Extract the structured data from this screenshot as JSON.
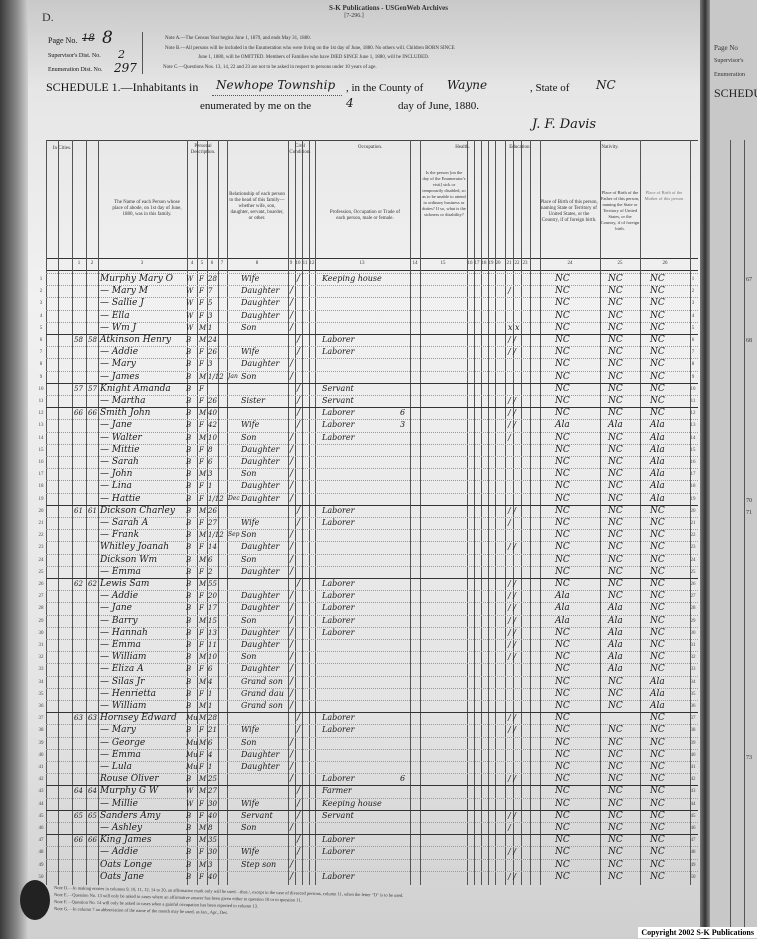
{
  "publisher": {
    "line1": "S-K Publications - USGenWeb Archives",
    "line2": "[7-296.]",
    "copyright": "Copyright 2002 S-K Publications"
  },
  "form_letter": "D.",
  "page_no": {
    "label": "Page No.",
    "struck": "18",
    "value": "8"
  },
  "supervisor": {
    "label": "Supervisor's Dist. No.",
    "value": "2"
  },
  "enumeration": {
    "label": "Enumeration Dist. No.",
    "value": "297"
  },
  "notes_top": [
    "Note A.—The Census Year begins June 1, 1879, and ends May 31, 1880.",
    "Note B.—All persons will be included in the Enumeration who were living on the 1st day of June, 1880. No others will. Children BORN SINCE",
    "June 1, 1880, will be OMITTED. Members of Families who have DIED SINCE June 1, 1880, will be INCLUDED.",
    "Note C.—Questions Nos. 13, 14, 22 and 23 are not to be asked in respect to persons under 10 years of age."
  ],
  "schedule": {
    "title": "SCHEDULE 1.—Inhabitants in",
    "place": "Newhope Township",
    "county_label": ", in the County of",
    "county": "Wayne",
    "state_label": ", State of",
    "state": "NC",
    "enum_label": "enumerated by me on the",
    "day": "4",
    "month_label": "day of June, 1880.",
    "signature": "J. F. Davis"
  },
  "headers": {
    "in_cities": "In Cities.",
    "personal": "Personal Description.",
    "civil": "Civil Condition.",
    "occupation": "Occupation.",
    "health": "Health.",
    "education": "Education.",
    "nativity": "Nativity.",
    "name_col": "The Name of each Person whose place of abode, on 1st day of June, 1880, was in this family.",
    "relationship_col": "Relationship of each person to the head of this family—whether wife, son, daughter, servant, boarder, or other.",
    "occupation_col": "Profession, Occupation or Trade of each person, male or female.",
    "health_col": "Is the person [on the day of the Enumerator's visit] sick or temporarily disabled, so as to be unable to attend to ordinary business or duties? If so, what is the sickness or disability?",
    "birth_col": "Place of Birth of this person, naming State or Territory of United States, or the Country, if of foreign birth.",
    "father_col": "Place of Birth of the Father of this person, naming the State or Territory of United States, or the Country, if of foreign birth.",
    "mother_col": "Place of Birth of the Mother of this person",
    "col_numbers": [
      "1",
      "2",
      "3",
      "4",
      "5",
      "6",
      "7",
      "8",
      "9",
      "10",
      "11",
      "12",
      "13",
      "14",
      "15",
      "16",
      "17",
      "18",
      "19",
      "20",
      "21",
      "22",
      "23",
      "24",
      "25",
      "26"
    ]
  },
  "rows": [
    {
      "d": "",
      "f": "",
      "name": "Murphy Mary O",
      "c": "W",
      "s": "F",
      "a": "28",
      "m": "",
      "rel": "Wife",
      "sg": "",
      "mr": "/",
      "occ": "Keeping house",
      "un": "",
      "ed": "",
      "b": "NC",
      "fb": "NC",
      "mb": "NC"
    },
    {
      "d": "",
      "f": "",
      "name": "— Mary M",
      "c": "W",
      "s": "F",
      "a": "7",
      "m": "",
      "rel": "Daughter",
      "sg": "/",
      "mr": "",
      "occ": "",
      "un": "",
      "ed": "/",
      "b": "NC",
      "fb": "NC",
      "mb": "NC"
    },
    {
      "d": "",
      "f": "",
      "name": "— Sallie J",
      "c": "W",
      "s": "F",
      "a": "5",
      "m": "",
      "rel": "Daughter",
      "sg": "/",
      "mr": "",
      "occ": "",
      "un": "",
      "ed": "",
      "b": "NC",
      "fb": "NC",
      "mb": "NC"
    },
    {
      "d": "",
      "f": "",
      "name": "— Ella",
      "c": "W",
      "s": "F",
      "a": "3",
      "m": "",
      "rel": "Daughter",
      "sg": "/",
      "mr": "",
      "occ": "",
      "un": "",
      "ed": "",
      "b": "NC",
      "fb": "NC",
      "mb": "NC"
    },
    {
      "d": "",
      "f": "",
      "name": "— Wm J",
      "c": "W",
      "s": "M",
      "a": "1",
      "m": "",
      "rel": "Son",
      "sg": "/",
      "mr": "",
      "occ": "",
      "un": "",
      "ed": "x x",
      "b": "NC",
      "fb": "NC",
      "mb": "NC"
    },
    {
      "d": "58",
      "f": "58",
      "name": "Atkinson Henry",
      "c": "B",
      "s": "M",
      "a": "24",
      "m": "",
      "rel": "",
      "sg": "",
      "mr": "/",
      "occ": "Laborer",
      "un": "",
      "ed": "/ /",
      "b": "NC",
      "fb": "NC",
      "mb": "NC"
    },
    {
      "d": "",
      "f": "",
      "name": "— Addie",
      "c": "B",
      "s": "F",
      "a": "26",
      "m": "",
      "rel": "Wife",
      "sg": "",
      "mr": "/",
      "occ": "Laborer",
      "un": "",
      "ed": "/ /",
      "b": "NC",
      "fb": "NC",
      "mb": "NC"
    },
    {
      "d": "",
      "f": "",
      "name": "— Mary",
      "c": "B",
      "s": "F",
      "a": "3",
      "m": "",
      "rel": "Daughter",
      "sg": "/",
      "mr": "",
      "occ": "",
      "un": "",
      "ed": "",
      "b": "NC",
      "fb": "NC",
      "mb": "NC"
    },
    {
      "d": "",
      "f": "",
      "name": "— James",
      "c": "B",
      "s": "M",
      "a": "1/12",
      "m": "Jan",
      "rel": "Son",
      "sg": "/",
      "mr": "",
      "occ": "",
      "un": "",
      "ed": "",
      "b": "NC",
      "fb": "NC",
      "mb": "NC"
    },
    {
      "d": "57",
      "f": "57",
      "name": "Knight Amanda",
      "c": "B",
      "s": "F",
      "a": "",
      "m": "",
      "rel": "",
      "sg": "",
      "mr": "/",
      "occ": "Servant",
      "un": "",
      "ed": "",
      "b": "NC",
      "fb": "NC",
      "mb": "NC"
    },
    {
      "d": "",
      "f": "",
      "name": "— Martha",
      "c": "B",
      "s": "F",
      "a": "26",
      "m": "",
      "rel": "Sister",
      "sg": "",
      "mr": "/",
      "occ": "Servant",
      "un": "",
      "ed": "/ /",
      "b": "NC",
      "fb": "NC",
      "mb": "NC"
    },
    {
      "d": "66",
      "f": "66",
      "name": "Smith John",
      "c": "B",
      "s": "M",
      "a": "40",
      "m": "",
      "rel": "",
      "sg": "",
      "mr": "/",
      "occ": "Laborer",
      "un": "6",
      "ed": "/ /",
      "b": "NC",
      "fb": "NC",
      "mb": "NC"
    },
    {
      "d": "",
      "f": "",
      "name": "— Jane",
      "c": "B",
      "s": "F",
      "a": "42",
      "m": "",
      "rel": "Wife",
      "sg": "",
      "mr": "/",
      "occ": "Laborer",
      "un": "3",
      "ed": "/ /",
      "b": "Ala",
      "fb": "Ala",
      "mb": "Ala"
    },
    {
      "d": "",
      "f": "",
      "name": "— Walter",
      "c": "B",
      "s": "M",
      "a": "10",
      "m": "",
      "rel": "Son",
      "sg": "/",
      "mr": "",
      "occ": "Laborer",
      "un": "",
      "ed": "/",
      "b": "NC",
      "fb": "NC",
      "mb": "Ala"
    },
    {
      "d": "",
      "f": "",
      "name": "— Mittie",
      "c": "B",
      "s": "F",
      "a": "8",
      "m": "",
      "rel": "Daughter",
      "sg": "/",
      "mr": "",
      "occ": "",
      "un": "",
      "ed": "",
      "b": "NC",
      "fb": "NC",
      "mb": "Ala"
    },
    {
      "d": "",
      "f": "",
      "name": "— Sarah",
      "c": "B",
      "s": "F",
      "a": "6",
      "m": "",
      "rel": "Daughter",
      "sg": "/",
      "mr": "",
      "occ": "",
      "un": "",
      "ed": "",
      "b": "NC",
      "fb": "NC",
      "mb": "Ala"
    },
    {
      "d": "",
      "f": "",
      "name": "— John",
      "c": "B",
      "s": "M",
      "a": "3",
      "m": "",
      "rel": "Son",
      "sg": "/",
      "mr": "",
      "occ": "",
      "un": "",
      "ed": "",
      "b": "NC",
      "fb": "NC",
      "mb": "Ala"
    },
    {
      "d": "",
      "f": "",
      "name": "— Lina",
      "c": "B",
      "s": "F",
      "a": "1",
      "m": "",
      "rel": "Daughter",
      "sg": "/",
      "mr": "",
      "occ": "",
      "un": "",
      "ed": "",
      "b": "NC",
      "fb": "NC",
      "mb": "Ala"
    },
    {
      "d": "",
      "f": "",
      "name": "— Hattie",
      "c": "B",
      "s": "F",
      "a": "1/12",
      "m": "Dec",
      "rel": "Daughter",
      "sg": "/",
      "mr": "",
      "occ": "",
      "un": "",
      "ed": "",
      "b": "NC",
      "fb": "NC",
      "mb": "Ala"
    },
    {
      "d": "61",
      "f": "61",
      "name": "Dickson Charley",
      "c": "B",
      "s": "M",
      "a": "26",
      "m": "",
      "rel": "",
      "sg": "",
      "mr": "/",
      "occ": "Laborer",
      "un": "",
      "ed": "/ /",
      "b": "NC",
      "fb": "NC",
      "mb": "NC"
    },
    {
      "d": "",
      "f": "",
      "name": "— Sarah A",
      "c": "B",
      "s": "F",
      "a": "27",
      "m": "",
      "rel": "Wife",
      "sg": "",
      "mr": "/",
      "occ": "Laborer",
      "un": "",
      "ed": "/",
      "b": "NC",
      "fb": "NC",
      "mb": "NC"
    },
    {
      "d": "",
      "f": "",
      "name": "— Frank",
      "c": "B",
      "s": "M",
      "a": "1/12",
      "m": "Sep",
      "rel": "Son",
      "sg": "/",
      "mr": "",
      "occ": "",
      "un": "",
      "ed": "",
      "b": "NC",
      "fb": "NC",
      "mb": "NC"
    },
    {
      "d": "",
      "f": "",
      "name": "Whitley Joanah",
      "c": "B",
      "s": "F",
      "a": "14",
      "m": "",
      "rel": "Daughter",
      "sg": "/",
      "mr": "",
      "occ": "",
      "un": "",
      "ed": "/ /",
      "b": "NC",
      "fb": "NC",
      "mb": "NC"
    },
    {
      "d": "",
      "f": "",
      "name": "Dickson Wm",
      "c": "B",
      "s": "M",
      "a": "6",
      "m": "",
      "rel": "Son",
      "sg": "/",
      "mr": "",
      "occ": "",
      "un": "",
      "ed": "",
      "b": "NC",
      "fb": "NC",
      "mb": "NC"
    },
    {
      "d": "",
      "f": "",
      "name": "— Emma",
      "c": "B",
      "s": "F",
      "a": "2",
      "m": "",
      "rel": "Daughter",
      "sg": "/",
      "mr": "",
      "occ": "",
      "un": "",
      "ed": "",
      "b": "NC",
      "fb": "NC",
      "mb": "NC"
    },
    {
      "d": "62",
      "f": "62",
      "name": "Lewis Sam",
      "c": "B",
      "s": "M",
      "a": "55",
      "m": "",
      "rel": "",
      "sg": "",
      "mr": "/",
      "occ": "Laborer",
      "un": "",
      "ed": "/ /",
      "b": "NC",
      "fb": "NC",
      "mb": "NC"
    },
    {
      "d": "",
      "f": "",
      "name": "— Addie",
      "c": "B",
      "s": "F",
      "a": "20",
      "m": "",
      "rel": "Daughter",
      "sg": "/",
      "mr": "",
      "occ": "Laborer",
      "un": "",
      "ed": "/ /",
      "b": "Ala",
      "fb": "NC",
      "mb": "NC"
    },
    {
      "d": "",
      "f": "",
      "name": "— Jane",
      "c": "B",
      "s": "F",
      "a": "17",
      "m": "",
      "rel": "Daughter",
      "sg": "/",
      "mr": "",
      "occ": "Laborer",
      "un": "",
      "ed": "/ /",
      "b": "Ala",
      "fb": "Ala",
      "mb": "NC"
    },
    {
      "d": "",
      "f": "",
      "name": "— Barry",
      "c": "B",
      "s": "M",
      "a": "15",
      "m": "",
      "rel": "Son",
      "sg": "/",
      "mr": "",
      "occ": "Laborer",
      "un": "",
      "ed": "/ /",
      "b": "Ala",
      "fb": "Ala",
      "mb": "NC"
    },
    {
      "d": "",
      "f": "",
      "name": "— Hannah",
      "c": "B",
      "s": "F",
      "a": "13",
      "m": "",
      "rel": "Daughter",
      "sg": "/",
      "mr": "",
      "occ": "Laborer",
      "un": "",
      "ed": "/ /",
      "b": "NC",
      "fb": "Ala",
      "mb": "NC"
    },
    {
      "d": "",
      "f": "",
      "name": "— Emma",
      "c": "B",
      "s": "F",
      "a": "11",
      "m": "",
      "rel": "Daughter",
      "sg": "/",
      "mr": "",
      "occ": "",
      "un": "",
      "ed": "/ /",
      "b": "NC",
      "fb": "Ala",
      "mb": "NC"
    },
    {
      "d": "",
      "f": "",
      "name": "— William",
      "c": "B",
      "s": "M",
      "a": "10",
      "m": "",
      "rel": "Son",
      "sg": "/",
      "mr": "",
      "occ": "",
      "un": "",
      "ed": "/ /",
      "b": "NC",
      "fb": "Ala",
      "mb": "NC"
    },
    {
      "d": "",
      "f": "",
      "name": "— Eliza A",
      "c": "B",
      "s": "F",
      "a": "6",
      "m": "",
      "rel": "Daughter",
      "sg": "/",
      "mr": "",
      "occ": "",
      "un": "",
      "ed": "",
      "b": "NC",
      "fb": "Ala",
      "mb": "NC"
    },
    {
      "d": "",
      "f": "",
      "name": "— Silas Jr",
      "c": "B",
      "s": "M",
      "a": "4",
      "m": "",
      "rel": "Grand son",
      "sg": "/",
      "mr": "",
      "occ": "",
      "un": "",
      "ed": "",
      "b": "NC",
      "fb": "NC",
      "mb": "Ala"
    },
    {
      "d": "",
      "f": "",
      "name": "— Henrietta",
      "c": "B",
      "s": "F",
      "a": "1",
      "m": "",
      "rel": "Grand dau",
      "sg": "/",
      "mr": "",
      "occ": "",
      "un": "",
      "ed": "",
      "b": "NC",
      "fb": "NC",
      "mb": "Ala"
    },
    {
      "d": "",
      "f": "",
      "name": "— William",
      "c": "B",
      "s": "M",
      "a": "1",
      "m": "",
      "rel": "Grand son",
      "sg": "/",
      "mr": "",
      "occ": "",
      "un": "",
      "ed": "",
      "b": "NC",
      "fb": "NC",
      "mb": "Ala"
    },
    {
      "d": "63",
      "f": "63",
      "name": "Hornsey Edward",
      "c": "Mu",
      "s": "M",
      "a": "28",
      "m": "",
      "rel": "",
      "sg": "",
      "mr": "/",
      "occ": "Laborer",
      "un": "",
      "ed": "/ /",
      "b": "NC",
      "fb": "",
      "mb": "NC"
    },
    {
      "d": "",
      "f": "",
      "name": "— Mary",
      "c": "B",
      "s": "F",
      "a": "21",
      "m": "",
      "rel": "Wife",
      "sg": "",
      "mr": "/",
      "occ": "Laborer",
      "un": "",
      "ed": "/ /",
      "b": "NC",
      "fb": "NC",
      "mb": "NC"
    },
    {
      "d": "",
      "f": "",
      "name": "— George",
      "c": "Mu",
      "s": "M",
      "a": "6",
      "m": "",
      "rel": "Son",
      "sg": "/",
      "mr": "",
      "occ": "",
      "un": "",
      "ed": "",
      "b": "NC",
      "fb": "NC",
      "mb": "NC"
    },
    {
      "d": "",
      "f": "",
      "name": "— Emma",
      "c": "Mu",
      "s": "F",
      "a": "4",
      "m": "",
      "rel": "Daughter",
      "sg": "/",
      "mr": "",
      "occ": "",
      "un": "",
      "ed": "",
      "b": "NC",
      "fb": "NC",
      "mb": "NC"
    },
    {
      "d": "",
      "f": "",
      "name": "— Lula",
      "c": "Mu",
      "s": "F",
      "a": "1",
      "m": "",
      "rel": "Daughter",
      "sg": "/",
      "mr": "",
      "occ": "",
      "un": "",
      "ed": "",
      "b": "NC",
      "fb": "NC",
      "mb": "NC"
    },
    {
      "d": "",
      "f": "",
      "name": "Rouse Oliver",
      "c": "B",
      "s": "M",
      "a": "25",
      "m": "",
      "rel": "",
      "sg": "/",
      "mr": "",
      "occ": "Laborer",
      "un": "6",
      "ed": "/ /",
      "b": "NC",
      "fb": "NC",
      "mb": "NC"
    },
    {
      "d": "64",
      "f": "64",
      "name": "Murphy G W",
      "c": "W",
      "s": "M",
      "a": "27",
      "m": "",
      "rel": "",
      "sg": "",
      "mr": "/",
      "occ": "Farmer",
      "un": "",
      "ed": "",
      "b": "NC",
      "fb": "NC",
      "mb": "NC"
    },
    {
      "d": "",
      "f": "",
      "name": "— Millie",
      "c": "W",
      "s": "F",
      "a": "30",
      "m": "",
      "rel": "Wife",
      "sg": "",
      "mr": "/",
      "occ": "Keeping house",
      "un": "",
      "ed": "",
      "b": "NC",
      "fb": "NC",
      "mb": "NC"
    },
    {
      "d": "65",
      "f": "65",
      "name": "Sanders Amy",
      "c": "B",
      "s": "F",
      "a": "40",
      "m": "",
      "rel": "Servant",
      "sg": "",
      "mr": "/",
      "occ": "Servant",
      "un": "",
      "ed": "/ /",
      "b": "NC",
      "fb": "NC",
      "mb": "NC"
    },
    {
      "d": "",
      "f": "",
      "name": "— Ashley",
      "c": "B",
      "s": "M",
      "a": "8",
      "m": "",
      "rel": "Son",
      "sg": "/",
      "mr": "",
      "occ": "",
      "un": "",
      "ed": "/",
      "b": "NC",
      "fb": "NC",
      "mb": "NC"
    },
    {
      "d": "66",
      "f": "66",
      "name": "King James",
      "c": "B",
      "s": "M",
      "a": "35",
      "m": "",
      "rel": "",
      "sg": "",
      "mr": "/",
      "occ": "Laborer",
      "un": "",
      "ed": "",
      "b": "NC",
      "fb": "NC",
      "mb": "NC"
    },
    {
      "d": "",
      "f": "",
      "name": "— Addie",
      "c": "B",
      "s": "F",
      "a": "30",
      "m": "",
      "rel": "Wife",
      "sg": "",
      "mr": "/",
      "occ": "Laborer",
      "un": "",
      "ed": "/ /",
      "b": "NC",
      "fb": "NC",
      "mb": "NC"
    },
    {
      "d": "",
      "f": "",
      "name": "Oats Longe",
      "c": "B",
      "s": "M",
      "a": "3",
      "m": "",
      "rel": "Step son",
      "sg": "/",
      "mr": "",
      "occ": "",
      "un": "",
      "ed": "",
      "b": "NC",
      "fb": "NC",
      "mb": "NC"
    },
    {
      "d": "",
      "f": "",
      "name": "Oats Jane",
      "c": "B",
      "s": "F",
      "a": "40",
      "m": "",
      "rel": "",
      "sg": "/",
      "mr": "",
      "occ": "Laborer",
      "un": "",
      "ed": "/ /",
      "b": "NC",
      "fb": "NC",
      "mb": "NC"
    }
  ],
  "notes_bottom": [
    "Note D.—In making entries in columns 9, 10, 11, 12, 14 to 20, an affirmative mark only will be used—thus /, except in the case of divorced persons, column 11, when the letter \"D\" is to be used.",
    "Note E.—Question No. 13 will only be asked in cases where an affirmative answer has been given either to question 10 or to question 11.",
    "Note F.—Question No. 14 will only be asked in cases when a gainful occupation has been reported in column 13.",
    "Note G.—In column 7 an abbreviation of the name of the month may be used, as Jan., Apr., Dec."
  ],
  "right_page": {
    "page_label": "Page No",
    "supervisor_label": "Supervisor's",
    "enum_label": "Enumeration",
    "schedule_label": "SCHEDU",
    "line_numbers": [
      "67",
      "68",
      "70",
      "71",
      "73"
    ]
  }
}
